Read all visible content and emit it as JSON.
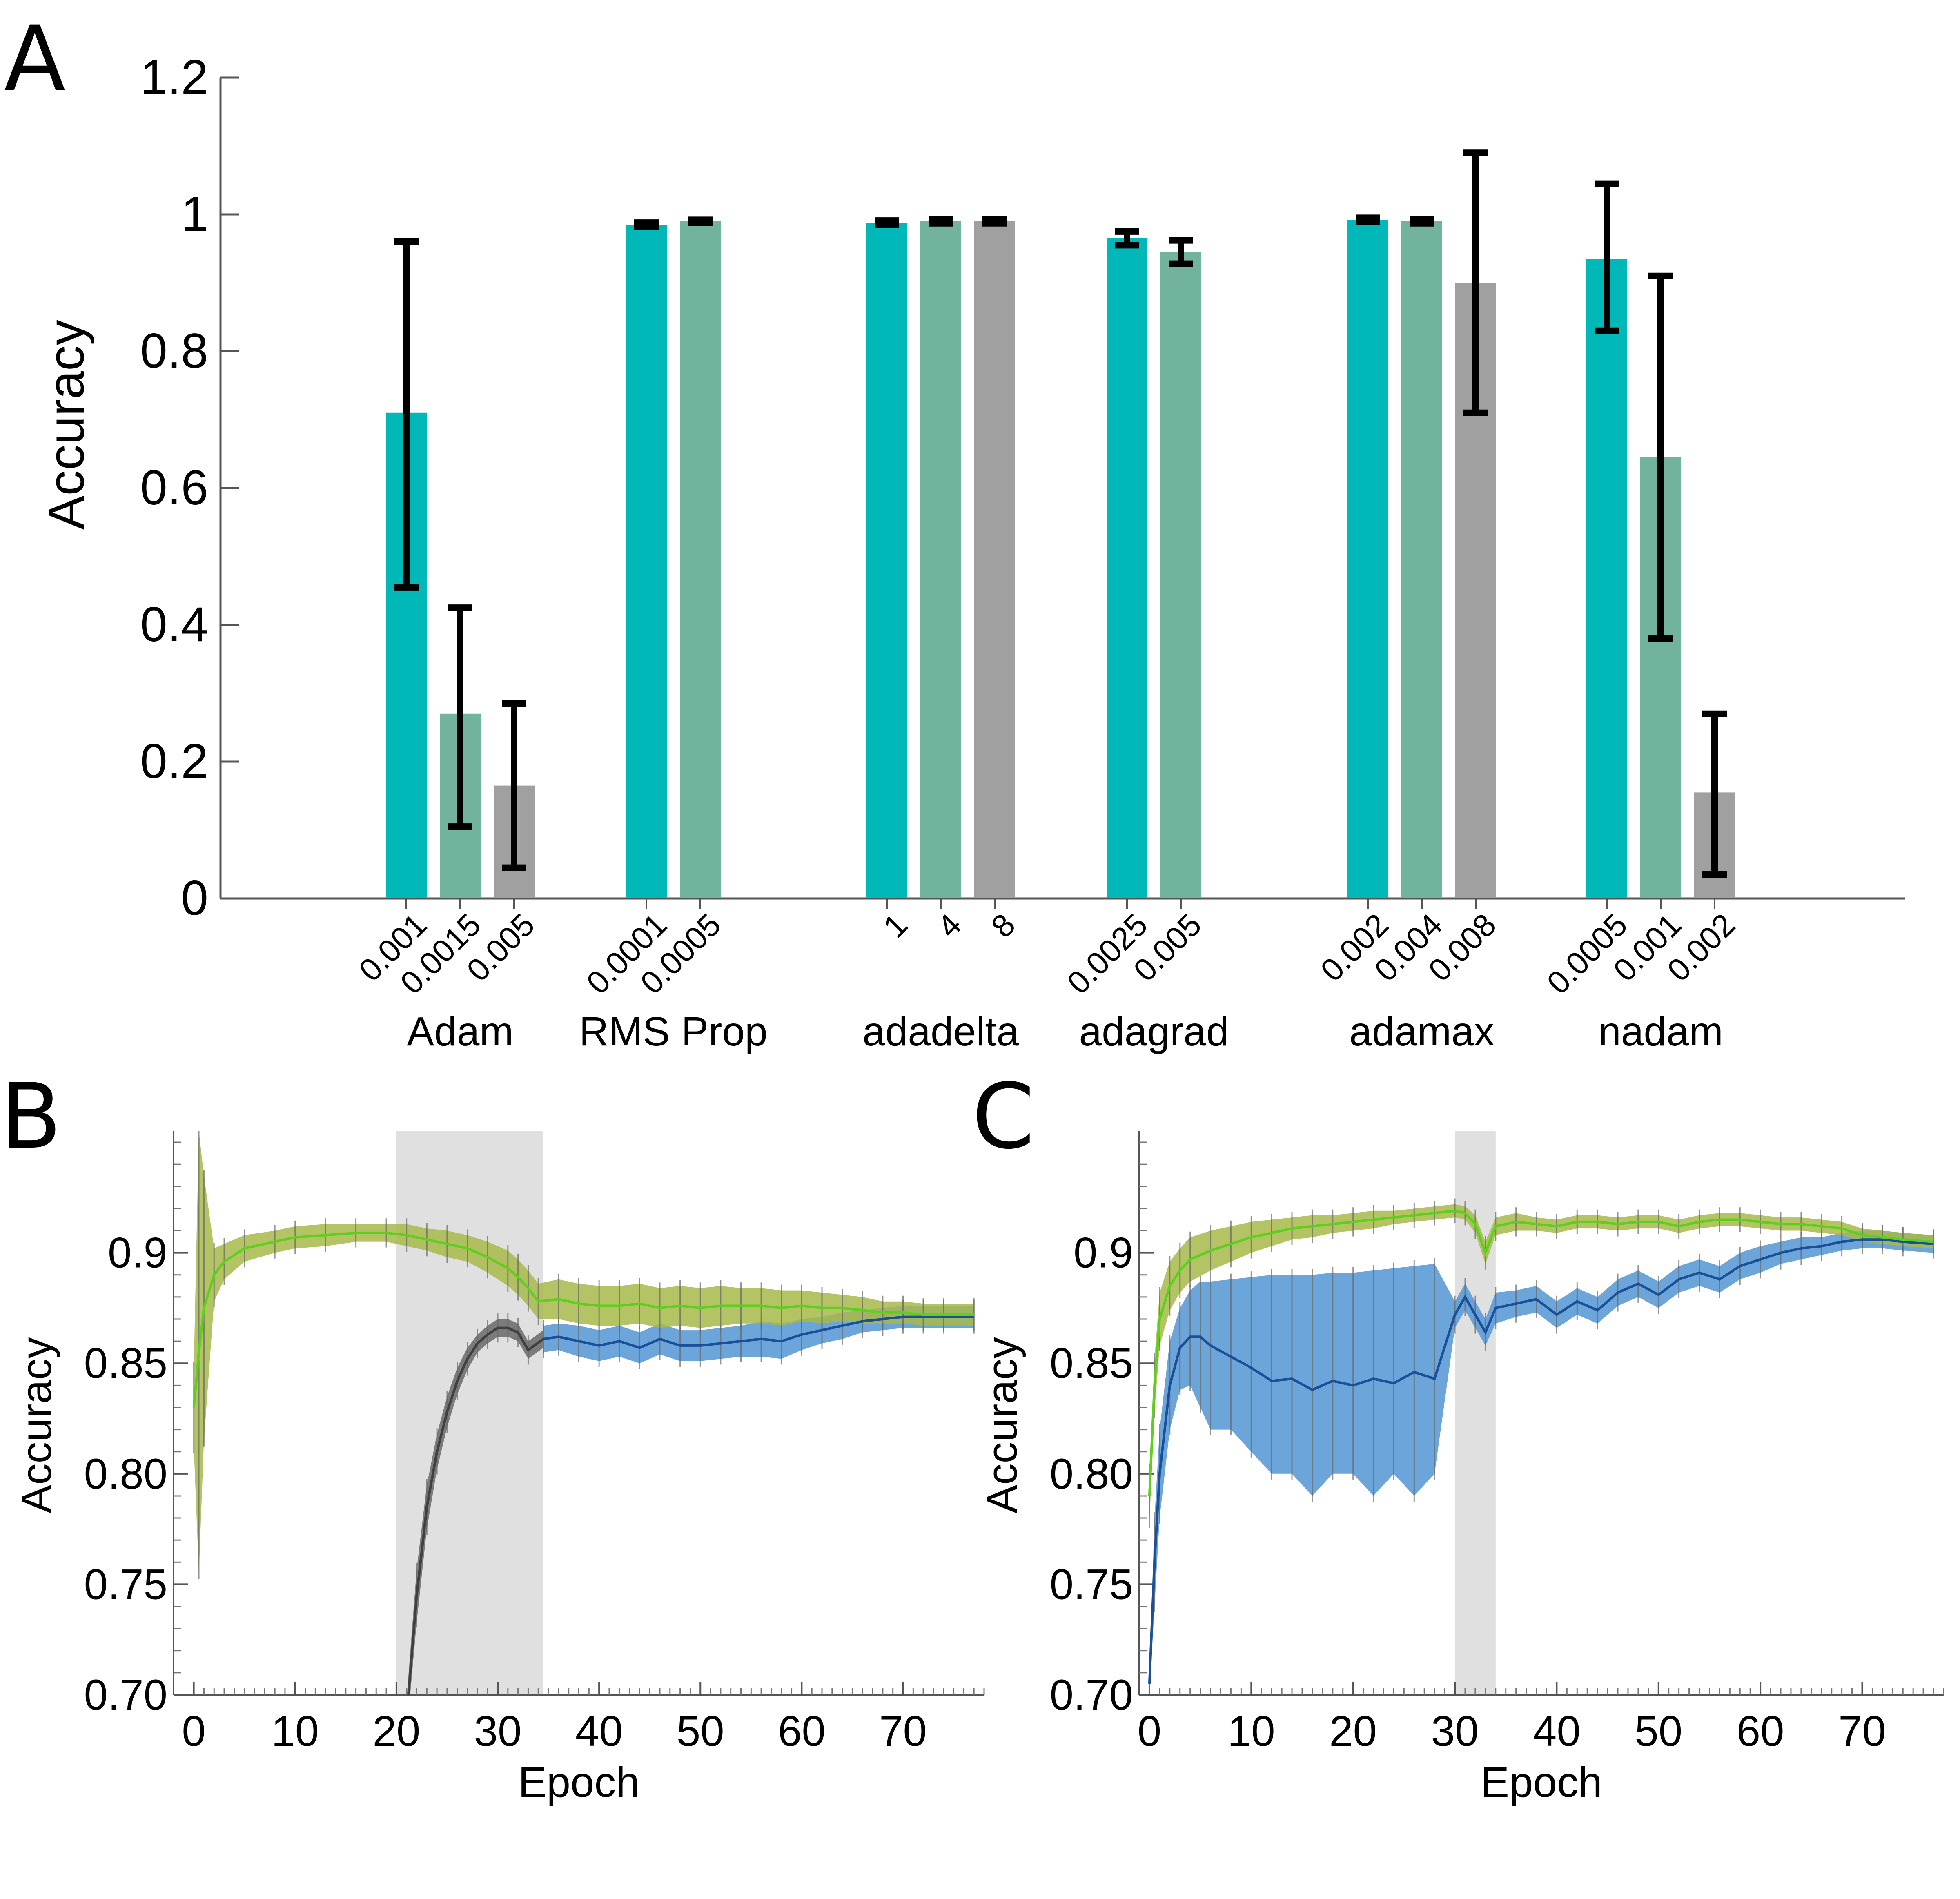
{
  "panels": {
    "a": "A",
    "b": "B",
    "c": "C"
  },
  "colors": {
    "bar_1": "#00b8b8",
    "bar_2": "#72b39e",
    "bar_3": "#a0a0a0",
    "error_bar": "#000000",
    "train_line": "#5fcf1f",
    "train_band": "#a7b848",
    "valid_line": "#1a4f99",
    "valid_band": "#5b9bd5",
    "pre_line": "#404040",
    "pre_band": "#707070",
    "shade": "#e0e0e0"
  },
  "chart_data": [
    {
      "panel": "A",
      "type": "bar",
      "ylabel": "Accuracy",
      "ylim": [
        0,
        1.2
      ],
      "yticks": [
        "0",
        "0.2",
        "0.4",
        "0.6",
        "0.8",
        "1",
        "1.2"
      ],
      "groups": [
        {
          "name": "Adam",
          "bars": [
            {
              "label": "0.001",
              "value": 0.71,
              "err_low": 0.455,
              "err_high": 0.96
            },
            {
              "label": "0.0015",
              "value": 0.27,
              "err_low": 0.105,
              "err_high": 0.425
            },
            {
              "label": "0.005",
              "value": 0.165,
              "err_low": 0.045,
              "err_high": 0.285
            }
          ]
        },
        {
          "name": "RMS Prop",
          "bars": [
            {
              "label": "0.0001",
              "value": 0.985,
              "err_low": 0.982,
              "err_high": 0.988
            },
            {
              "label": "0.0005",
              "value": 0.99,
              "err_low": 0.988,
              "err_high": 0.992
            }
          ]
        },
        {
          "name": "adadelta",
          "bars": [
            {
              "label": "1",
              "value": 0.988,
              "err_low": 0.985,
              "err_high": 0.991
            },
            {
              "label": "4",
              "value": 0.99,
              "err_low": 0.987,
              "err_high": 0.993
            },
            {
              "label": "8",
              "value": 0.99,
              "err_low": 0.987,
              "err_high": 0.993
            }
          ]
        },
        {
          "name": "adagrad",
          "bars": [
            {
              "label": "0.0025",
              "value": 0.965,
              "err_low": 0.955,
              "err_high": 0.975
            },
            {
              "label": "0.005",
              "value": 0.945,
              "err_low": 0.928,
              "err_high": 0.962
            }
          ]
        },
        {
          "name": "adamax",
          "bars": [
            {
              "label": "0.002",
              "value": 0.992,
              "err_low": 0.989,
              "err_high": 0.995
            },
            {
              "label": "0.004",
              "value": 0.99,
              "err_low": 0.987,
              "err_high": 0.993
            },
            {
              "label": "0.008",
              "value": 0.9,
              "err_low": 0.71,
              "err_high": 1.09
            }
          ]
        },
        {
          "name": "nadam",
          "bars": [
            {
              "label": "0.0005",
              "value": 0.935,
              "err_low": 0.83,
              "err_high": 1.045
            },
            {
              "label": "0.001",
              "value": 0.645,
              "err_low": 0.38,
              "err_high": 0.91
            },
            {
              "label": "0.002",
              "value": 0.155,
              "err_low": 0.035,
              "err_high": 0.27
            }
          ]
        }
      ]
    },
    {
      "panel": "B",
      "type": "line",
      "xlabel": "Epoch",
      "ylabel": "Accuracy",
      "xlim": [
        -2,
        78
      ],
      "ylim": [
        0.7,
        0.955
      ],
      "xticks": [
        "0",
        "10",
        "20",
        "30",
        "40",
        "50",
        "60",
        "70"
      ],
      "yticks": [
        "0.70",
        "0.75",
        "0.80",
        "0.85",
        "0.9"
      ],
      "shaded_region": [
        20,
        34.5
      ],
      "series": [
        {
          "role": "train",
          "x": [
            0,
            0.5,
            1,
            2,
            3,
            5,
            8,
            10,
            13,
            16,
            19,
            21,
            23,
            25,
            27,
            29,
            31,
            32,
            33,
            34,
            36,
            38,
            40,
            42,
            44,
            46,
            48,
            50,
            52,
            54,
            56,
            58,
            60,
            62,
            64,
            66,
            68,
            70,
            72,
            74,
            77
          ],
          "y": [
            0.83,
            0.855,
            0.875,
            0.89,
            0.896,
            0.902,
            0.905,
            0.907,
            0.908,
            0.909,
            0.909,
            0.908,
            0.906,
            0.904,
            0.902,
            0.898,
            0.893,
            0.889,
            0.884,
            0.878,
            0.879,
            0.877,
            0.876,
            0.876,
            0.877,
            0.875,
            0.876,
            0.875,
            0.876,
            0.876,
            0.876,
            0.875,
            0.876,
            0.875,
            0.875,
            0.874,
            0.873,
            0.873,
            0.872,
            0.872,
            0.872
          ],
          "band": [
            0.018,
            0.1,
            0.06,
            0.012,
            0.008,
            0.006,
            0.005,
            0.005,
            0.005,
            0.004,
            0.004,
            0.005,
            0.005,
            0.006,
            0.006,
            0.007,
            0.008,
            0.008,
            0.008,
            0.008,
            0.009,
            0.009,
            0.009,
            0.009,
            0.009,
            0.009,
            0.009,
            0.009,
            0.009,
            0.008,
            0.008,
            0.008,
            0.007,
            0.007,
            0.006,
            0.006,
            0.005,
            0.005,
            0.005,
            0.005,
            0.005
          ]
        },
        {
          "role": "pre",
          "x": [
            21,
            22,
            23,
            24,
            25,
            26,
            27,
            28,
            29,
            30,
            31,
            32,
            33,
            34.5
          ],
          "y": [
            0.69,
            0.745,
            0.785,
            0.81,
            0.828,
            0.842,
            0.852,
            0.859,
            0.863,
            0.866,
            0.866,
            0.864,
            0.856,
            0.861
          ],
          "band": [
            0.008,
            0.012,
            0.01,
            0.008,
            0.007,
            0.006,
            0.005,
            0.004,
            0.004,
            0.004,
            0.004,
            0.004,
            0.004,
            0.004
          ]
        },
        {
          "role": "valid",
          "x": [
            34.5,
            36,
            38,
            40,
            42,
            44,
            46,
            48,
            50,
            52,
            54,
            56,
            58,
            60,
            62,
            64,
            66,
            68,
            70,
            72,
            74,
            77
          ],
          "y": [
            0.861,
            0.862,
            0.86,
            0.858,
            0.86,
            0.857,
            0.861,
            0.858,
            0.858,
            0.859,
            0.86,
            0.861,
            0.86,
            0.863,
            0.865,
            0.867,
            0.869,
            0.87,
            0.871,
            0.871,
            0.871,
            0.871
          ],
          "band": [
            0.006,
            0.006,
            0.007,
            0.007,
            0.007,
            0.007,
            0.007,
            0.007,
            0.007,
            0.007,
            0.007,
            0.008,
            0.008,
            0.007,
            0.006,
            0.006,
            0.005,
            0.005,
            0.005,
            0.005,
            0.005,
            0.005
          ]
        }
      ]
    },
    {
      "panel": "C",
      "type": "line",
      "xlabel": "Epoch",
      "ylabel": "Accuracy",
      "xlim": [
        -1,
        78
      ],
      "ylim": [
        0.7,
        0.955
      ],
      "xticks": [
        "0",
        "10",
        "20",
        "30",
        "40",
        "50",
        "60",
        "70"
      ],
      "yticks": [
        "0.70",
        "0.75",
        "0.80",
        "0.85",
        "0.9"
      ],
      "shaded_region": [
        30,
        34
      ],
      "series": [
        {
          "role": "train",
          "x": [
            0,
            0.5,
            1,
            2,
            3,
            4,
            6,
            8,
            10,
            12,
            14,
            16,
            18,
            20,
            22,
            24,
            26,
            28,
            30,
            31,
            32,
            33,
            34,
            36,
            38,
            40,
            42,
            44,
            46,
            48,
            50,
            52,
            54,
            56,
            58,
            60,
            62,
            64,
            66,
            68,
            70,
            72,
            74,
            77
          ],
          "y": [
            0.79,
            0.84,
            0.87,
            0.885,
            0.892,
            0.897,
            0.901,
            0.904,
            0.907,
            0.909,
            0.911,
            0.912,
            0.913,
            0.914,
            0.915,
            0.916,
            0.917,
            0.918,
            0.919,
            0.918,
            0.913,
            0.9,
            0.912,
            0.914,
            0.913,
            0.912,
            0.914,
            0.914,
            0.913,
            0.914,
            0.914,
            0.912,
            0.914,
            0.915,
            0.915,
            0.914,
            0.913,
            0.913,
            0.912,
            0.911,
            0.908,
            0.907,
            0.906,
            0.905
          ],
          "band": [
            0.012,
            0.012,
            0.012,
            0.011,
            0.01,
            0.01,
            0.009,
            0.008,
            0.007,
            0.006,
            0.005,
            0.005,
            0.004,
            0.004,
            0.004,
            0.003,
            0.003,
            0.003,
            0.003,
            0.003,
            0.004,
            0.005,
            0.004,
            0.004,
            0.003,
            0.003,
            0.003,
            0.003,
            0.003,
            0.003,
            0.003,
            0.003,
            0.003,
            0.003,
            0.003,
            0.003,
            0.003,
            0.003,
            0.003,
            0.003,
            0.003,
            0.003,
            0.003,
            0.003
          ]
        },
        {
          "role": "valid",
          "x": [
            0,
            0.5,
            1,
            2,
            3,
            4,
            5,
            6,
            8,
            10,
            12,
            14,
            16,
            18,
            20,
            22,
            24,
            26,
            28,
            30,
            31,
            32,
            33,
            34,
            36,
            38,
            40,
            42,
            44,
            46,
            48,
            50,
            52,
            54,
            56,
            58,
            60,
            62,
            64,
            66,
            68,
            70,
            72,
            74,
            77
          ],
          "y": [
            0.705,
            0.76,
            0.8,
            0.84,
            0.857,
            0.862,
            0.862,
            0.858,
            0.853,
            0.848,
            0.842,
            0.843,
            0.838,
            0.842,
            0.84,
            0.843,
            0.841,
            0.846,
            0.843,
            0.872,
            0.88,
            0.872,
            0.864,
            0.875,
            0.877,
            0.879,
            0.872,
            0.878,
            0.874,
            0.882,
            0.886,
            0.881,
            0.888,
            0.891,
            0.888,
            0.894,
            0.897,
            0.9,
            0.902,
            0.903,
            0.905,
            0.906,
            0.906,
            0.905,
            0.904
          ],
          "band_low": [
            0.7,
            0.74,
            0.78,
            0.82,
            0.838,
            0.84,
            0.83,
            0.82,
            0.82,
            0.81,
            0.8,
            0.8,
            0.79,
            0.8,
            0.8,
            0.79,
            0.8,
            0.79,
            0.8,
            0.866,
            0.874,
            0.866,
            0.858,
            0.868,
            0.871,
            0.873,
            0.866,
            0.872,
            0.868,
            0.876,
            0.88,
            0.875,
            0.882,
            0.885,
            0.882,
            0.888,
            0.891,
            0.895,
            0.897,
            0.899,
            0.901,
            0.902,
            0.902,
            0.901,
            0.9
          ],
          "band_high": [
            0.71,
            0.78,
            0.82,
            0.86,
            0.875,
            0.883,
            0.887,
            0.887,
            0.888,
            0.889,
            0.89,
            0.89,
            0.89,
            0.891,
            0.891,
            0.892,
            0.893,
            0.894,
            0.895,
            0.878,
            0.886,
            0.878,
            0.87,
            0.882,
            0.883,
            0.885,
            0.878,
            0.884,
            0.88,
            0.888,
            0.892,
            0.887,
            0.894,
            0.897,
            0.894,
            0.9,
            0.903,
            0.905,
            0.907,
            0.907,
            0.909,
            0.91,
            0.91,
            0.909,
            0.908
          ]
        }
      ]
    }
  ]
}
